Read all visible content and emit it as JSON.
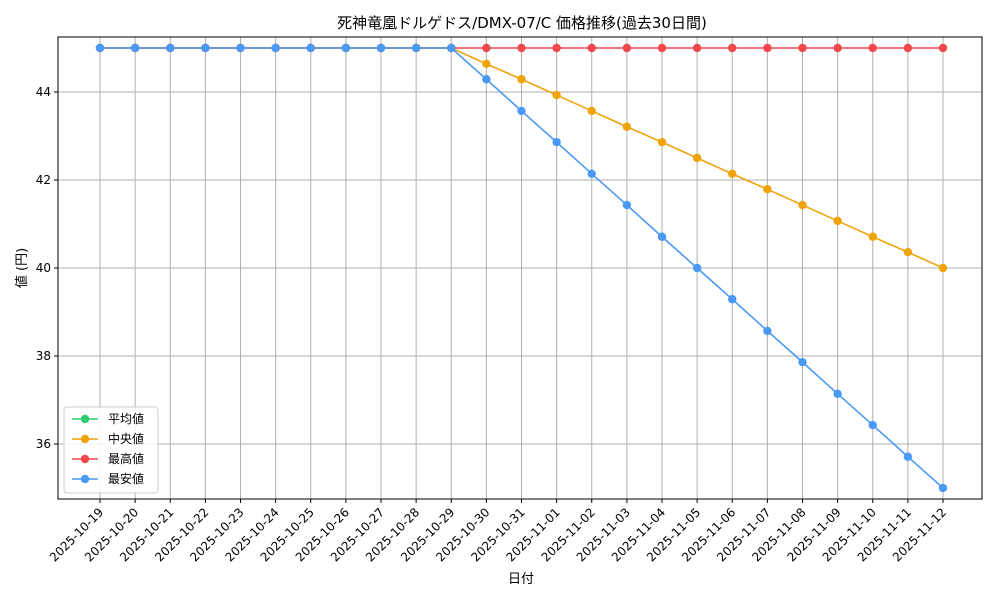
{
  "chart_data": {
    "type": "line",
    "title": "死神竜凰ドルゲドス/DMX-07/C 価格推移(過去30日間)",
    "xlabel": "日付",
    "ylabel": "値 (円)",
    "ylim": [
      34.75,
      45.25
    ],
    "yticks": [
      36,
      38,
      40,
      42,
      44
    ],
    "grid": true,
    "legend_position": "lower-left",
    "categories": [
      "2025-10-19",
      "2025-10-20",
      "2025-10-21",
      "2025-10-22",
      "2025-10-23",
      "2025-10-24",
      "2025-10-25",
      "2025-10-26",
      "2025-10-27",
      "2025-10-28",
      "2025-10-29",
      "2025-10-30",
      "2025-10-31",
      "2025-11-01",
      "2025-11-02",
      "2025-11-03",
      "2025-11-04",
      "2025-11-05",
      "2025-11-06",
      "2025-11-07",
      "2025-11-08",
      "2025-11-09",
      "2025-11-10",
      "2025-11-11",
      "2025-11-12"
    ],
    "series": [
      {
        "name": "平均値",
        "color": "#2ecc71",
        "values": [
          45,
          45,
          45,
          45,
          45,
          45,
          45,
          45,
          45,
          45,
          45,
          null,
          null,
          null,
          null,
          null,
          null,
          null,
          null,
          null,
          null,
          null,
          null,
          null,
          null
        ]
      },
      {
        "name": "中央値",
        "color": "#f0a30a",
        "values": [
          45,
          45,
          45,
          45,
          45,
          45,
          45,
          45,
          45,
          45,
          45,
          44.64,
          44.29,
          43.93,
          43.57,
          43.21,
          42.86,
          42.5,
          42.14,
          41.79,
          41.43,
          41.07,
          40.71,
          40.36,
          40
        ]
      },
      {
        "name": "最高値",
        "color": "#f0474b",
        "values": [
          45,
          45,
          45,
          45,
          45,
          45,
          45,
          45,
          45,
          45,
          45,
          45,
          45,
          45,
          45,
          45,
          45,
          45,
          45,
          45,
          45,
          45,
          45,
          45,
          45
        ]
      },
      {
        "name": "最安値",
        "color": "#4a9af5",
        "values": [
          45,
          45,
          45,
          45,
          45,
          45,
          45,
          45,
          45,
          45,
          45,
          44.29,
          43.57,
          42.86,
          42.14,
          41.43,
          40.71,
          40,
          39.29,
          38.57,
          37.86,
          37.14,
          36.43,
          35.71,
          35
        ]
      }
    ]
  }
}
